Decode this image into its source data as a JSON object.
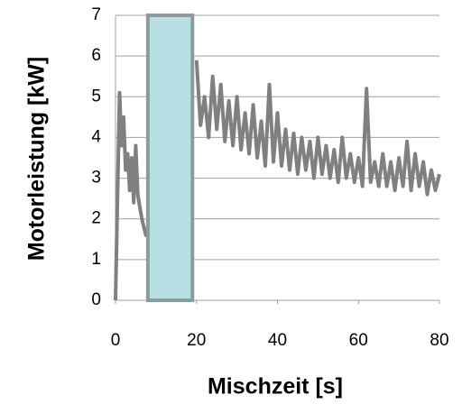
{
  "chart_data": {
    "type": "line",
    "x_label": "Mischzeit [s]",
    "y_label": "Motorleistung  [kW]",
    "xlim": [
      0,
      80
    ],
    "xticks": [
      0,
      20,
      40,
      60,
      80
    ],
    "ylim": [
      0,
      7
    ],
    "yticks": [
      0,
      1,
      2,
      3,
      4,
      5,
      6,
      7
    ],
    "grid": true,
    "highlight": {
      "x": [
        8,
        19
      ],
      "color": "#b8e0e4",
      "border": "#8c9c9c"
    },
    "series": [
      {
        "color": "#808080",
        "x": [
          0,
          0.5,
          1,
          1.5,
          2,
          2.5,
          3,
          3.5,
          4,
          4.5,
          5,
          5.5,
          6,
          6.5,
          7,
          7.5,
          8,
          13,
          20,
          21,
          22,
          23,
          24,
          25,
          26,
          27,
          28,
          29,
          30,
          31,
          32,
          33,
          34,
          35,
          36,
          37,
          38,
          39,
          40,
          41,
          42,
          43,
          44,
          45,
          46,
          47,
          48,
          49,
          50,
          51,
          52,
          53,
          54,
          55,
          56,
          57,
          58,
          59,
          60,
          61,
          62,
          63,
          64,
          65,
          66,
          67,
          68,
          69,
          70,
          71,
          72,
          73,
          74,
          75,
          76,
          77,
          78,
          79,
          80
        ],
        "values": [
          0,
          2.5,
          5.1,
          3.8,
          4.5,
          3.2,
          3.6,
          2.7,
          3.5,
          2.4,
          3.8,
          2.6,
          2.3,
          2.0,
          1.8,
          1.6,
          1.7,
          null,
          5.9,
          4.3,
          5.0,
          4.0,
          5.5,
          4.2,
          5.3,
          3.9,
          4.9,
          3.8,
          5.0,
          3.7,
          4.6,
          3.6,
          4.8,
          3.5,
          4.4,
          3.3,
          5.3,
          3.4,
          4.6,
          3.3,
          4.2,
          3.2,
          4.1,
          3.1,
          4.0,
          3.2,
          3.9,
          3.0,
          4.0,
          3.1,
          3.8,
          3.0,
          3.7,
          2.9,
          4.0,
          3.0,
          3.6,
          2.9,
          3.5,
          2.8,
          5.2,
          2.9,
          3.4,
          2.8,
          3.6,
          2.8,
          3.4,
          2.7,
          3.5,
          2.8,
          3.9,
          2.7,
          3.6,
          2.8,
          3.4,
          2.6,
          3.2,
          2.7,
          3.1
        ]
      }
    ]
  }
}
